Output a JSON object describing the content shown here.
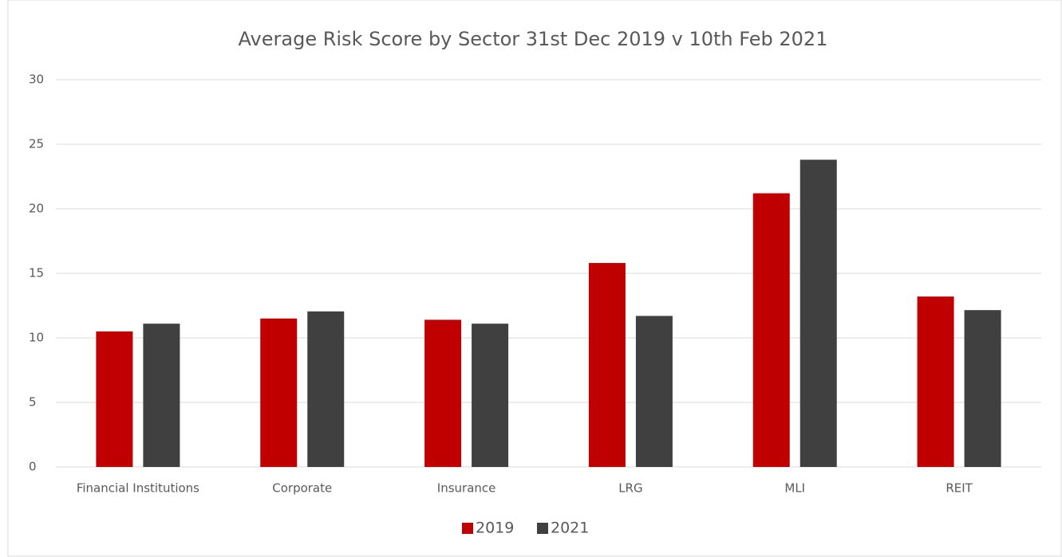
{
  "chart_data": {
    "type": "bar",
    "title": "Average Risk Score by Sector 31st Dec 2019 v 10th Feb 2021",
    "categories": [
      "Financial Institutions",
      "Corporate",
      "Insurance",
      "LRG",
      "MLI",
      "REIT"
    ],
    "series": [
      {
        "name": "2019",
        "color": "#c00000",
        "values": [
          10.5,
          11.5,
          11.4,
          15.8,
          21.2,
          13.2
        ]
      },
      {
        "name": "2021",
        "color": "#404040",
        "values": [
          11.1,
          12.05,
          11.1,
          11.7,
          23.8,
          12.15
        ]
      }
    ],
    "ylim": [
      0,
      30
    ],
    "yticks": [
      0,
      5,
      10,
      15,
      20,
      25,
      30
    ],
    "grid": true,
    "legend": "bottom"
  }
}
